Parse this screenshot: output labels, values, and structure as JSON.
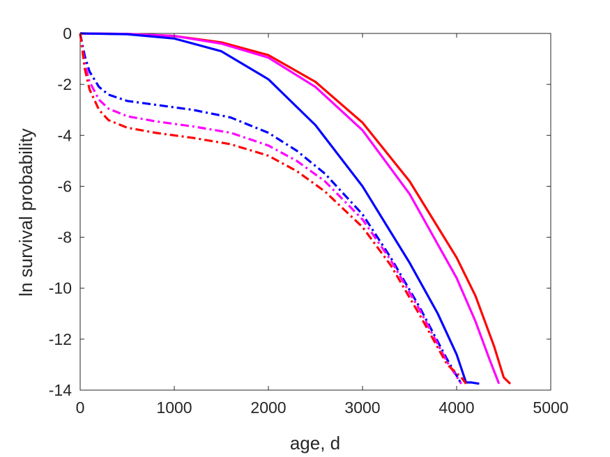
{
  "chart_data": {
    "type": "line",
    "title": "",
    "xlabel": "age, d",
    "ylabel": "ln survival probability",
    "xlim": [
      0,
      5000
    ],
    "ylim": [
      -14,
      0
    ],
    "xticks": [
      0,
      1000,
      2000,
      3000,
      4000,
      5000
    ],
    "yticks": [
      0,
      -2,
      -4,
      -6,
      -8,
      -10,
      -12,
      -14
    ],
    "xtick_labels": [
      "0",
      "1000",
      "2000",
      "3000",
      "4000",
      "5000"
    ],
    "ytick_labels": [
      "0",
      "-2",
      "-4",
      "-6",
      "-8",
      "-10",
      "-12",
      "-14"
    ],
    "grid": false,
    "legend": "none",
    "series": [
      {
        "color": "#ff0000",
        "style": "solid",
        "x": [
          0,
          500,
          1000,
          1500,
          2000,
          2500,
          3000,
          3500,
          4000,
          4200,
          4400,
          4500,
          4570
        ],
        "y": [
          0,
          -0.02,
          -0.1,
          -0.35,
          -0.85,
          -1.9,
          -3.5,
          -5.8,
          -8.8,
          -10.3,
          -12.3,
          -13.5,
          -13.75
        ]
      },
      {
        "color": "#ff00ff",
        "style": "solid",
        "x": [
          0,
          500,
          1000,
          1500,
          2000,
          2500,
          3000,
          3500,
          4000,
          4200,
          4350,
          4450
        ],
        "y": [
          0,
          -0.02,
          -0.1,
          -0.4,
          -0.95,
          -2.1,
          -3.8,
          -6.3,
          -9.6,
          -11.3,
          -12.8,
          -13.75
        ]
      },
      {
        "color": "#0000ff",
        "style": "solid",
        "x": [
          0,
          500,
          1000,
          1500,
          2000,
          2500,
          3000,
          3500,
          3800,
          4000,
          4100,
          4160,
          4240
        ],
        "y": [
          0,
          -0.03,
          -0.2,
          -0.7,
          -1.8,
          -3.6,
          -6.0,
          -9.0,
          -11.0,
          -12.6,
          -13.7,
          -13.7,
          -13.75
        ]
      },
      {
        "color": "#0000ff",
        "style": "dashdot",
        "x": [
          0,
          50,
          100,
          200,
          300,
          500,
          800,
          1200,
          1600,
          2000,
          2300,
          2600,
          3000,
          3300,
          3600,
          3900,
          4050
        ],
        "y": [
          0,
          -0.9,
          -1.5,
          -2.1,
          -2.4,
          -2.65,
          -2.8,
          -3.0,
          -3.3,
          -3.9,
          -4.6,
          -5.5,
          -7.1,
          -8.8,
          -10.7,
          -12.8,
          -13.75
        ]
      },
      {
        "color": "#ff00ff",
        "style": "dashdot",
        "x": [
          0,
          50,
          100,
          200,
          300,
          500,
          800,
          1200,
          1600,
          2000,
          2300,
          2600,
          3000,
          3300,
          3600,
          3900,
          4050
        ],
        "y": [
          0,
          -1.2,
          -1.9,
          -2.6,
          -2.95,
          -3.25,
          -3.45,
          -3.65,
          -3.9,
          -4.4,
          -5.0,
          -5.8,
          -7.3,
          -8.9,
          -10.8,
          -12.9,
          -13.75
        ]
      },
      {
        "color": "#ff0000",
        "style": "dashdot",
        "x": [
          0,
          50,
          100,
          200,
          300,
          500,
          800,
          1200,
          1600,
          2000,
          2300,
          2600,
          3000,
          3300,
          3600,
          3900,
          4050,
          4100
        ],
        "y": [
          0,
          -1.4,
          -2.2,
          -3.0,
          -3.4,
          -3.7,
          -3.9,
          -4.1,
          -4.35,
          -4.8,
          -5.4,
          -6.2,
          -7.6,
          -9.1,
          -11.0,
          -13.0,
          -13.5,
          -13.75
        ]
      }
    ]
  }
}
